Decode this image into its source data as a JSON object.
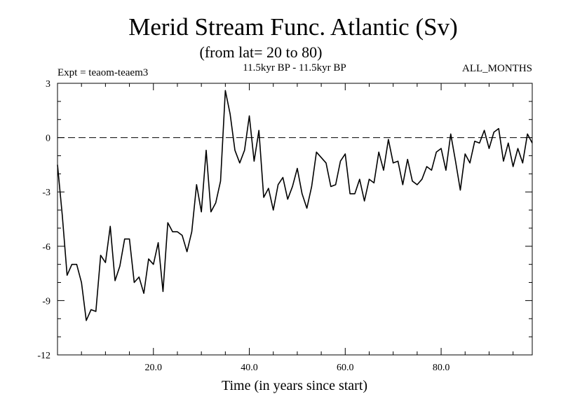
{
  "chart_data": {
    "type": "line",
    "title": "Merid Stream Func. Atlantic (Sv)",
    "subtitle": "(from lat= 20 to 80)",
    "experiment": "Expt = teaom-teaem3",
    "period": "11.5kyr BP - 11.5kyr BP",
    "season": "ALL_MONTHS",
    "xlabel": "Time (in years since start)",
    "ylabel": "",
    "xlim": [
      0,
      99
    ],
    "ylim": [
      -12,
      3
    ],
    "xticks": [
      20,
      40,
      60,
      80
    ],
    "xtick_labels": [
      "20.0",
      "40.0",
      "60.0",
      "80.0"
    ],
    "yticks": [
      3,
      0,
      -3,
      -6,
      -9,
      -12
    ],
    "ytick_labels": [
      "3",
      "0",
      "-3",
      "-6",
      "-9",
      "-12"
    ],
    "reference_line": {
      "y": 0,
      "style": "dashed"
    },
    "series": [
      {
        "name": "Merid Stream Func.",
        "x": [
          0,
          1,
          2,
          3,
          4,
          5,
          6,
          7,
          8,
          9,
          10,
          11,
          12,
          13,
          14,
          15,
          16,
          17,
          18,
          19,
          20,
          21,
          22,
          23,
          24,
          25,
          26,
          27,
          28,
          29,
          30,
          31,
          32,
          33,
          34,
          35,
          36,
          37,
          38,
          39,
          40,
          41,
          42,
          43,
          44,
          45,
          46,
          47,
          48,
          49,
          50,
          51,
          52,
          53,
          54,
          55,
          56,
          57,
          58,
          59,
          60,
          61,
          62,
          63,
          64,
          65,
          66,
          67,
          68,
          69,
          70,
          71,
          72,
          73,
          74,
          75,
          76,
          77,
          78,
          79,
          80,
          81,
          82,
          83,
          84,
          85,
          86,
          87,
          88,
          89,
          90,
          91,
          92,
          93,
          94,
          95,
          96,
          97,
          98,
          99
        ],
        "values": [
          -1.5,
          -4.3,
          -7.6,
          -7.0,
          -7.0,
          -8.0,
          -10.1,
          -9.5,
          -9.6,
          -6.5,
          -6.9,
          -4.9,
          -7.9,
          -7.1,
          -5.6,
          -5.6,
          -8.0,
          -7.7,
          -8.6,
          -6.7,
          -7.0,
          -5.8,
          -8.5,
          -4.7,
          -5.2,
          -5.2,
          -5.4,
          -6.3,
          -5.2,
          -2.6,
          -4.1,
          -0.7,
          -4.1,
          -3.6,
          -2.4,
          2.6,
          1.3,
          -0.7,
          -1.4,
          -0.7,
          1.2,
          -1.3,
          0.4,
          -3.3,
          -2.8,
          -4.0,
          -2.6,
          -2.2,
          -3.4,
          -2.7,
          -1.7,
          -3.1,
          -3.9,
          -2.7,
          -0.8,
          -1.1,
          -1.4,
          -2.7,
          -2.6,
          -1.3,
          -0.9,
          -3.1,
          -3.1,
          -2.3,
          -3.5,
          -2.3,
          -2.5,
          -0.8,
          -1.8,
          -0.1,
          -1.4,
          -1.3,
          -2.6,
          -1.2,
          -2.4,
          -2.6,
          -2.3,
          -1.6,
          -1.8,
          -0.8,
          -0.6,
          -1.8,
          0.2,
          -1.3,
          -2.9,
          -0.9,
          -1.4,
          -0.2,
          -0.3,
          0.4,
          -0.6,
          0.3,
          0.5,
          -1.3,
          -0.3,
          -1.6,
          -0.6,
          -1.4,
          0.2,
          -0.3
        ]
      }
    ]
  }
}
